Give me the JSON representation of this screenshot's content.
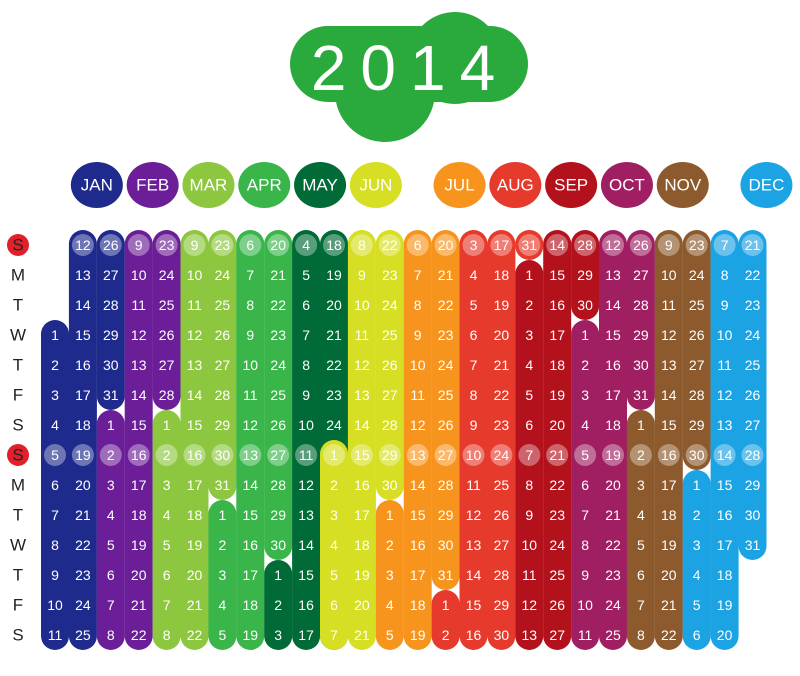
{
  "title": "2014",
  "weekdays": [
    "S",
    "M",
    "T",
    "W",
    "T",
    "F",
    "S",
    "S",
    "M",
    "T",
    "W",
    "T",
    "F",
    "S"
  ],
  "months": [
    {
      "name": "JAN",
      "color": "#1f2b8c",
      "days": [
        1,
        2,
        3,
        4,
        5,
        6,
        7,
        8,
        9,
        10,
        11,
        12,
        13,
        14,
        15,
        16,
        17,
        18,
        19,
        20,
        21,
        22,
        23,
        24,
        25,
        26,
        27,
        28,
        29,
        30,
        31
      ]
    },
    {
      "name": "FEB",
      "color": "#6b1e97",
      "days": [
        1,
        2,
        3,
        4,
        5,
        6,
        7,
        8,
        9,
        10,
        11,
        12,
        13,
        14,
        15,
        16,
        17,
        18,
        19,
        20,
        21,
        22,
        23,
        24,
        25,
        26,
        27,
        28
      ]
    },
    {
      "name": "MAR",
      "color": "#8dc63f",
      "days": [
        1,
        2,
        3,
        4,
        5,
        6,
        7,
        8,
        9,
        10,
        11,
        12,
        13,
        14,
        15,
        16,
        17,
        18,
        19,
        20,
        21,
        22,
        23,
        24,
        25,
        26,
        27,
        28,
        29,
        30,
        31
      ]
    },
    {
      "name": "APR",
      "color": "#39b54a",
      "days": [
        1,
        2,
        3,
        4,
        5,
        6,
        7,
        8,
        9,
        10,
        11,
        12,
        13,
        14,
        15,
        16,
        17,
        18,
        19,
        20,
        21,
        22,
        23,
        24,
        25,
        26,
        27,
        28,
        29,
        30
      ]
    },
    {
      "name": "MAY",
      "color": "#006b36",
      "days": [
        1,
        2,
        3,
        4,
        5,
        6,
        7,
        8,
        9,
        10,
        11,
        12,
        13,
        14,
        15,
        16,
        17,
        18,
        19,
        20,
        21,
        22,
        23,
        24,
        25,
        26,
        27,
        28,
        29,
        30,
        31
      ]
    },
    {
      "name": "JUN",
      "color": "#d6df23",
      "days": [
        1,
        2,
        3,
        4,
        5,
        6,
        7,
        8,
        9,
        10,
        11,
        12,
        13,
        14,
        15,
        16,
        17,
        18,
        19,
        20,
        21,
        22,
        23,
        24,
        25,
        26,
        27,
        28,
        29,
        30
      ]
    },
    {
      "name": "JUL",
      "color": "#f7941d",
      "days": [
        1,
        2,
        3,
        4,
        5,
        6,
        7,
        8,
        9,
        10,
        11,
        12,
        13,
        14,
        15,
        16,
        17,
        18,
        19,
        20,
        21,
        22,
        23,
        24,
        25,
        26,
        27,
        28,
        29,
        30,
        31
      ]
    },
    {
      "name": "AUG",
      "color": "#e63a2c",
      "days": [
        1,
        2,
        3,
        4,
        5,
        6,
        7,
        8,
        9,
        10,
        11,
        12,
        13,
        14,
        15,
        16,
        17,
        18,
        19,
        20,
        21,
        22,
        23,
        24,
        25,
        26,
        27,
        28,
        29,
        30,
        31
      ]
    },
    {
      "name": "SEP",
      "color": "#b3121d",
      "days": [
        1,
        2,
        3,
        4,
        5,
        6,
        7,
        8,
        9,
        10,
        11,
        12,
        13,
        14,
        15,
        16,
        17,
        18,
        19,
        20,
        21,
        22,
        23,
        24,
        25,
        26,
        27,
        28,
        29,
        30
      ]
    },
    {
      "name": "OCT",
      "color": "#a01f63",
      "days": [
        1,
        2,
        3,
        4,
        5,
        6,
        7,
        8,
        9,
        10,
        11,
        12,
        13,
        14,
        15,
        16,
        17,
        18,
        19,
        20,
        21,
        22,
        23,
        24,
        25,
        26,
        27,
        28,
        29,
        30,
        31
      ]
    },
    {
      "name": "NOV",
      "color": "#8c5a2c",
      "days": [
        1,
        2,
        3,
        4,
        5,
        6,
        7,
        8,
        9,
        10,
        11,
        12,
        13,
        14,
        15,
        16,
        17,
        18,
        19,
        20,
        21,
        22,
        23,
        24,
        25,
        26,
        27,
        28,
        29,
        30
      ]
    },
    {
      "name": "DEC",
      "color": "#1ca3e3",
      "days": [
        1,
        2,
        3,
        4,
        5,
        6,
        7,
        8,
        9,
        10,
        11,
        12,
        13,
        14,
        15,
        16,
        17,
        18,
        19,
        20,
        21,
        22,
        23,
        24,
        25,
        26,
        27,
        28,
        29,
        30,
        31
      ]
    }
  ]
}
